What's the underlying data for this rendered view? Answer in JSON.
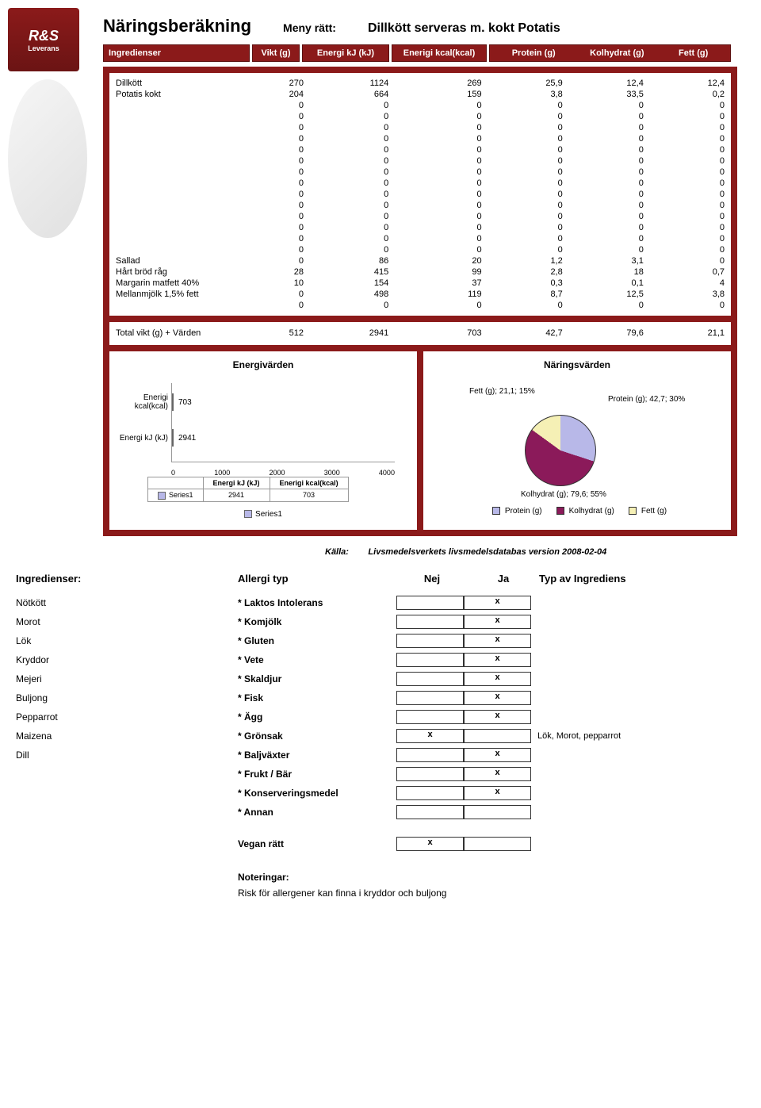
{
  "header": {
    "title": "Näringsberäkning",
    "meny_label": "Meny rätt:",
    "dish": "Dillkött serveras m. kokt Potatis",
    "logo_main": "R&S",
    "logo_sub": "Leverans"
  },
  "columns": {
    "ingredienser": "Ingredienser",
    "vikt": "Vikt (g)",
    "kj": "Energi kJ (kJ)",
    "kcal": "Enerigi kcal(kcal)",
    "protein": "Protein (g)",
    "kolhydrat": "Kolhydrat (g)",
    "fett": "Fett (g)"
  },
  "rows": [
    {
      "name": "Dillkött",
      "vikt": "270",
      "kj": "1124",
      "kcal": "269",
      "p": "25,9",
      "k": "12,4",
      "f": "12,4"
    },
    {
      "name": "Potatis kokt",
      "vikt": "204",
      "kj": "664",
      "kcal": "159",
      "p": "3,8",
      "k": "33,5",
      "f": "0,2"
    },
    {
      "name": "",
      "vikt": "0",
      "kj": "0",
      "kcal": "0",
      "p": "0",
      "k": "0",
      "f": "0"
    },
    {
      "name": "",
      "vikt": "0",
      "kj": "0",
      "kcal": "0",
      "p": "0",
      "k": "0",
      "f": "0"
    },
    {
      "name": "",
      "vikt": "0",
      "kj": "0",
      "kcal": "0",
      "p": "0",
      "k": "0",
      "f": "0"
    },
    {
      "name": "",
      "vikt": "0",
      "kj": "0",
      "kcal": "0",
      "p": "0",
      "k": "0",
      "f": "0"
    },
    {
      "name": "",
      "vikt": "0",
      "kj": "0",
      "kcal": "0",
      "p": "0",
      "k": "0",
      "f": "0"
    },
    {
      "name": "",
      "vikt": "0",
      "kj": "0",
      "kcal": "0",
      "p": "0",
      "k": "0",
      "f": "0"
    },
    {
      "name": "",
      "vikt": "0",
      "kj": "0",
      "kcal": "0",
      "p": "0",
      "k": "0",
      "f": "0"
    },
    {
      "name": "",
      "vikt": "0",
      "kj": "0",
      "kcal": "0",
      "p": "0",
      "k": "0",
      "f": "0"
    },
    {
      "name": "",
      "vikt": "0",
      "kj": "0",
      "kcal": "0",
      "p": "0",
      "k": "0",
      "f": "0"
    },
    {
      "name": "",
      "vikt": "0",
      "kj": "0",
      "kcal": "0",
      "p": "0",
      "k": "0",
      "f": "0"
    },
    {
      "name": "",
      "vikt": "0",
      "kj": "0",
      "kcal": "0",
      "p": "0",
      "k": "0",
      "f": "0"
    },
    {
      "name": "",
      "vikt": "0",
      "kj": "0",
      "kcal": "0",
      "p": "0",
      "k": "0",
      "f": "0"
    },
    {
      "name": "",
      "vikt": "0",
      "kj": "0",
      "kcal": "0",
      "p": "0",
      "k": "0",
      "f": "0"
    },
    {
      "name": "",
      "vikt": "0",
      "kj": "0",
      "kcal": "0",
      "p": "0",
      "k": "0",
      "f": "0"
    },
    {
      "name": "Sallad",
      "vikt": "0",
      "kj": "86",
      "kcal": "20",
      "p": "1,2",
      "k": "3,1",
      "f": "0"
    },
    {
      "name": "Hårt bröd råg",
      "vikt": "28",
      "kj": "415",
      "kcal": "99",
      "p": "2,8",
      "k": "18",
      "f": "0,7"
    },
    {
      "name": "Margarin matfett 40%",
      "vikt": "10",
      "kj": "154",
      "kcal": "37",
      "p": "0,3",
      "k": "0,1",
      "f": "4"
    },
    {
      "name": "Mellanmjölk 1,5% fett",
      "vikt": "0",
      "kj": "498",
      "kcal": "119",
      "p": "8,7",
      "k": "12,5",
      "f": "3,8"
    },
    {
      "name": "",
      "vikt": "0",
      "kj": "0",
      "kcal": "0",
      "p": "0",
      "k": "0",
      "f": "0"
    }
  ],
  "totals": {
    "label": "Total vikt (g) + Värden",
    "vikt": "512",
    "kj": "2941",
    "kcal": "703",
    "p": "42,7",
    "k": "79,6",
    "f": "21,1"
  },
  "energy_chart": {
    "title": "Energivärden",
    "bar_color": "#b8b8e8",
    "xlim": 4000,
    "ticks": [
      "0",
      "1000",
      "2000",
      "3000",
      "4000"
    ],
    "bars": [
      {
        "label": "Enerigi kcal(kcal)",
        "value": 703,
        "text": "703"
      },
      {
        "label": "Energi kJ (kJ)",
        "value": 2941,
        "text": "2941"
      }
    ],
    "legend_series": "Series1",
    "legend_cols": [
      "Energi kJ (kJ)",
      "Enerigi kcal(kcal)"
    ],
    "legend_vals": [
      "2941",
      "703"
    ]
  },
  "nutrition_chart": {
    "title": "Näringsvärden",
    "slices": [
      {
        "label": "Protein (g); 42,7; 30%",
        "color": "#b8b8e8"
      },
      {
        "label": "Kolhydrat (g); 79,6; 55%",
        "color": "#8b1a5a"
      },
      {
        "label": "Fett (g); 21,1; 15%",
        "color": "#f5f0b5"
      }
    ],
    "legend": [
      {
        "label": "Protein (g)",
        "color": "#b8b8e8"
      },
      {
        "label": "Kolhydrat (g)",
        "color": "#8b1a5a"
      },
      {
        "label": "Fett (g)",
        "color": "#f5f0b5"
      }
    ]
  },
  "source": {
    "label": "Källa:",
    "text": "Livsmedelsverkets livsmedelsdatabas version 2008-02-04"
  },
  "allergy": {
    "headers": {
      "ing": "Ingredienser:",
      "typ": "Allergi typ",
      "nej": "Nej",
      "ja": "Ja",
      "ti": "Typ av Ingrediens"
    },
    "rows": [
      {
        "ing": "Nötkött",
        "typ": "* Laktos Intolerans",
        "nej": "",
        "ja": "x",
        "ti": ""
      },
      {
        "ing": "Morot",
        "typ": "* Komjölk",
        "nej": "",
        "ja": "x",
        "ti": ""
      },
      {
        "ing": "Lök",
        "typ": "* Gluten",
        "nej": "",
        "ja": "x",
        "ti": ""
      },
      {
        "ing": "Kryddor",
        "typ": "* Vete",
        "nej": "",
        "ja": "x",
        "ti": ""
      },
      {
        "ing": "Mejeri",
        "typ": "* Skaldjur",
        "nej": "",
        "ja": "x",
        "ti": ""
      },
      {
        "ing": "Buljong",
        "typ": "* Fisk",
        "nej": "",
        "ja": "x",
        "ti": ""
      },
      {
        "ing": "Pepparrot",
        "typ": "* Ägg",
        "nej": "",
        "ja": "x",
        "ti": ""
      },
      {
        "ing": "Maizena",
        "typ": "* Grönsak",
        "nej": "x",
        "ja": "",
        "ti": "Lök, Morot, pepparrot"
      },
      {
        "ing": "Dill",
        "typ": "* Baljväxter",
        "nej": "",
        "ja": "x",
        "ti": ""
      },
      {
        "ing": "",
        "typ": "* Frukt / Bär",
        "nej": "",
        "ja": "x",
        "ti": ""
      },
      {
        "ing": "",
        "typ": "* Konserveringsmedel",
        "nej": "",
        "ja": "x",
        "ti": ""
      },
      {
        "ing": "",
        "typ": "* Annan",
        "nej": "",
        "ja": "",
        "ti": ""
      }
    ],
    "vegan": {
      "label": "Vegan rätt",
      "nej": "x",
      "ja": ""
    },
    "notes": {
      "title": "Noteringar:",
      "text": "Risk för allergener kan finna i kryddor och buljong"
    }
  }
}
